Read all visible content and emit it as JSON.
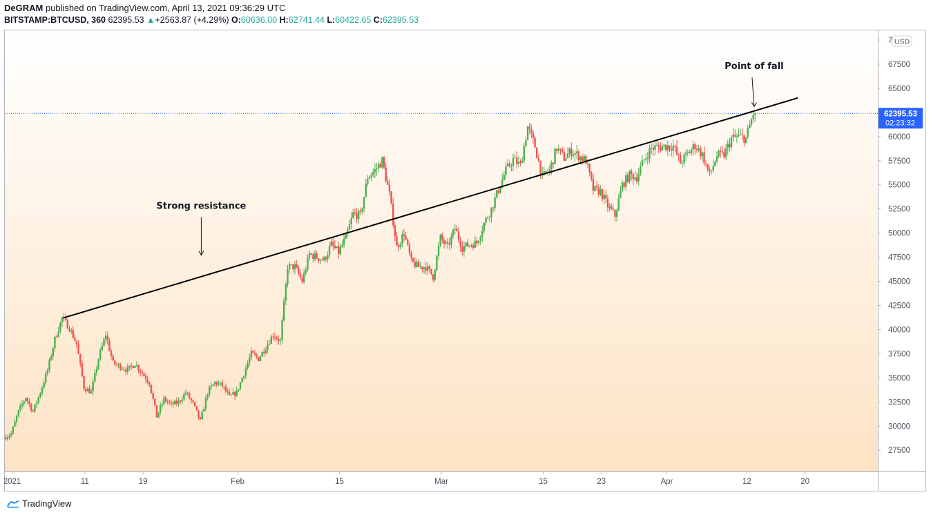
{
  "header": {
    "author": "DeGRAM",
    "published_text": "published on TradingView.com, April 13, 2021 09:36:29 UTC",
    "symbol": "BITSTAMP:BTCUSD, 360",
    "last_price": "62395.53",
    "change": "+2563.87 (+4.29%)",
    "open_label": "O:",
    "open": "60636.00",
    "high_label": "H:",
    "high": "62741.44",
    "low_label": "L:",
    "low": "60422.65",
    "close_label": "C:",
    "close": "62395.53"
  },
  "price_axis": {
    "currency": "USD",
    "current_price": "62395.53",
    "countdown": "02:23:32"
  },
  "annotations": {
    "strong_resistance": "Strong resistance",
    "point_of_fall": "Point of fall"
  },
  "footer": {
    "brand": "TradingView"
  },
  "colors": {
    "up": "#26a69a",
    "up_candle": "#4caf50",
    "down_candle": "#ef5350",
    "price_tag": "#2962ff",
    "background_top": "#ffffff",
    "background_bottom": "#fde3c4"
  },
  "chart_data": {
    "type": "candlestick",
    "y_ticks": [
      27500,
      30000,
      32500,
      35000,
      37500,
      40000,
      42500,
      45000,
      47500,
      50000,
      52500,
      55000,
      57500,
      60000,
      62500,
      65000,
      67500,
      70000
    ],
    "ylim": [
      25300,
      71000
    ],
    "x_ticks": [
      "2021",
      "11",
      "19",
      "Feb",
      "15",
      "Mar",
      "15",
      "23",
      "Apr",
      "12",
      "20"
    ],
    "x_tick_dates": [
      "2021-01-01",
      "2021-01-11",
      "2021-01-19",
      "2021-02-01",
      "2021-02-15",
      "2021-03-01",
      "2021-03-15",
      "2021-03-23",
      "2021-04-01",
      "2021-04-12",
      "2021-04-20"
    ],
    "xlim": [
      "2020-12-31",
      "2021-04-30"
    ],
    "current_price": 62395.53,
    "price_path": [
      [
        "2020-12-31",
        28800
      ],
      [
        "2021-01-01",
        29200
      ],
      [
        "2021-01-02",
        31500
      ],
      [
        "2021-01-03",
        33000
      ],
      [
        "2021-01-04",
        31500
      ],
      [
        "2021-01-05",
        33500
      ],
      [
        "2021-01-06",
        35800
      ],
      [
        "2021-01-07",
        39000
      ],
      [
        "2021-01-08",
        41200
      ],
      [
        "2021-01-09",
        40200
      ],
      [
        "2021-01-10",
        38500
      ],
      [
        "2021-01-11",
        34000
      ],
      [
        "2021-01-12",
        33500
      ],
      [
        "2021-01-13",
        37000
      ],
      [
        "2021-01-14",
        39500
      ],
      [
        "2021-01-15",
        36500
      ],
      [
        "2021-01-16",
        36200
      ],
      [
        "2021-01-17",
        35800
      ],
      [
        "2021-01-18",
        36500
      ],
      [
        "2021-01-19",
        35500
      ],
      [
        "2021-01-20",
        34500
      ],
      [
        "2021-01-21",
        31000
      ],
      [
        "2021-01-22",
        32800
      ],
      [
        "2021-01-23",
        32200
      ],
      [
        "2021-01-24",
        32500
      ],
      [
        "2021-01-25",
        33500
      ],
      [
        "2021-01-26",
        32300
      ],
      [
        "2021-01-27",
        30500
      ],
      [
        "2021-01-28",
        33500
      ],
      [
        "2021-01-29",
        34500
      ],
      [
        "2021-01-30",
        34200
      ],
      [
        "2021-01-31",
        33000
      ],
      [
        "2021-02-01",
        33500
      ],
      [
        "2021-02-02",
        35500
      ],
      [
        "2021-02-03",
        37500
      ],
      [
        "2021-02-04",
        37000
      ],
      [
        "2021-02-05",
        38200
      ],
      [
        "2021-02-06",
        39500
      ],
      [
        "2021-02-07",
        38800
      ],
      [
        "2021-02-08",
        46500
      ],
      [
        "2021-02-09",
        46500
      ],
      [
        "2021-02-10",
        45000
      ],
      [
        "2021-02-11",
        47800
      ],
      [
        "2021-02-12",
        47500
      ],
      [
        "2021-02-13",
        47200
      ],
      [
        "2021-02-14",
        48800
      ],
      [
        "2021-02-15",
        48000
      ],
      [
        "2021-02-16",
        49500
      ],
      [
        "2021-02-17",
        52000
      ],
      [
        "2021-02-18",
        51800
      ],
      [
        "2021-02-19",
        55800
      ],
      [
        "2021-02-20",
        56500
      ],
      [
        "2021-02-21",
        57500
      ],
      [
        "2021-02-22",
        54000
      ],
      [
        "2021-02-23",
        48500
      ],
      [
        "2021-02-24",
        50000
      ],
      [
        "2021-02-25",
        47000
      ],
      [
        "2021-02-26",
        46500
      ],
      [
        "2021-02-27",
        46500
      ],
      [
        "2021-02-28",
        45500
      ],
      [
        "2021-03-01",
        49500
      ],
      [
        "2021-03-02",
        48500
      ],
      [
        "2021-03-03",
        50500
      ],
      [
        "2021-03-04",
        48500
      ],
      [
        "2021-03-05",
        48800
      ],
      [
        "2021-03-06",
        49000
      ],
      [
        "2021-03-07",
        51000
      ],
      [
        "2021-03-08",
        52500
      ],
      [
        "2021-03-09",
        54500
      ],
      [
        "2021-03-10",
        56500
      ],
      [
        "2021-03-11",
        57600
      ],
      [
        "2021-03-12",
        57000
      ],
      [
        "2021-03-13",
        61000
      ],
      [
        "2021-03-14",
        59000
      ],
      [
        "2021-03-15",
        55800
      ],
      [
        "2021-03-16",
        56500
      ],
      [
        "2021-03-17",
        58800
      ],
      [
        "2021-03-18",
        57800
      ],
      [
        "2021-03-19",
        58500
      ],
      [
        "2021-03-20",
        58000
      ],
      [
        "2021-03-21",
        57500
      ],
      [
        "2021-03-22",
        54500
      ],
      [
        "2021-03-23",
        54300
      ],
      [
        "2021-03-24",
        52800
      ],
      [
        "2021-03-25",
        51800
      ],
      [
        "2021-03-26",
        55000
      ],
      [
        "2021-03-27",
        56000
      ],
      [
        "2021-03-28",
        55800
      ],
      [
        "2021-03-29",
        57600
      ],
      [
        "2021-03-30",
        58800
      ],
      [
        "2021-03-31",
        58900
      ],
      [
        "2021-04-01",
        59000
      ],
      [
        "2021-04-02",
        59000
      ],
      [
        "2021-04-03",
        57300
      ],
      [
        "2021-04-04",
        58200
      ],
      [
        "2021-04-05",
        59100
      ],
      [
        "2021-04-06",
        58100
      ],
      [
        "2021-04-07",
        56000
      ],
      [
        "2021-04-08",
        58000
      ],
      [
        "2021-04-09",
        58100
      ],
      [
        "2021-04-10",
        59800
      ],
      [
        "2021-04-11",
        60000
      ],
      [
        "2021-04-12",
        59800
      ],
      [
        "2021-04-13",
        62400
      ]
    ],
    "resistance_line": {
      "start": [
        "2021-01-08",
        41200
      ],
      "end": [
        "2021-04-19",
        64000
      ]
    },
    "annotations": [
      {
        "text": "Strong resistance",
        "x": "2021-01-27",
        "y": 52500,
        "arrow_to": 47700
      },
      {
        "text": "Point of fall",
        "x": "2021-04-13",
        "y": 67000,
        "arrow_to": 63100
      }
    ]
  }
}
